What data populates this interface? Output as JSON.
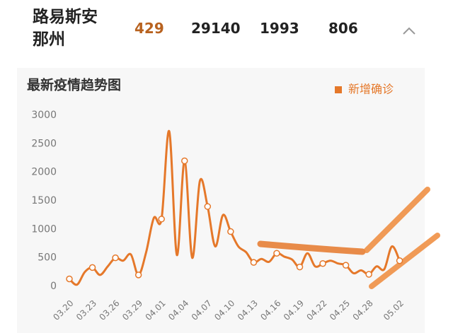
{
  "header": {
    "region": "路易斯安那州",
    "stats": [
      {
        "value": 429
      },
      {
        "value": 29140
      },
      {
        "value": 1993
      },
      {
        "value": 806
      }
    ]
  },
  "chart_data": {
    "type": "line",
    "title": "最新疫情趋势图",
    "categories": [
      "03.20",
      null,
      null,
      "03.23",
      null,
      null,
      "03.26",
      null,
      null,
      "03.29",
      null,
      null,
      "04.01",
      null,
      null,
      "04.04",
      null,
      null,
      "04.07",
      null,
      null,
      "04.10",
      null,
      null,
      "04.13",
      null,
      null,
      "04.16",
      null,
      null,
      "04.19",
      null,
      null,
      "04.22",
      null,
      null,
      "04.25",
      null,
      null,
      "04.28",
      null,
      null,
      null,
      "05.02"
    ],
    "series": [
      {
        "name": "新增确诊",
        "color": "#e5782a",
        "values": [
          130,
          30,
          250,
          330,
          200,
          350,
          500,
          450,
          560,
          200,
          600,
          1200,
          1180,
          2720,
          550,
          2200,
          500,
          1850,
          1400,
          700,
          1250,
          960,
          700,
          600,
          420,
          480,
          430,
          580,
          520,
          470,
          340,
          580,
          350,
          400,
          450,
          400,
          370,
          230,
          280,
          210,
          350,
          300,
          700,
          450
        ]
      }
    ],
    "ylim": [
      0,
      3000
    ],
    "yticks": [
      0,
      500,
      1000,
      1500,
      2000,
      2500,
      3000
    ],
    "grid": false,
    "legend": "top-right"
  }
}
